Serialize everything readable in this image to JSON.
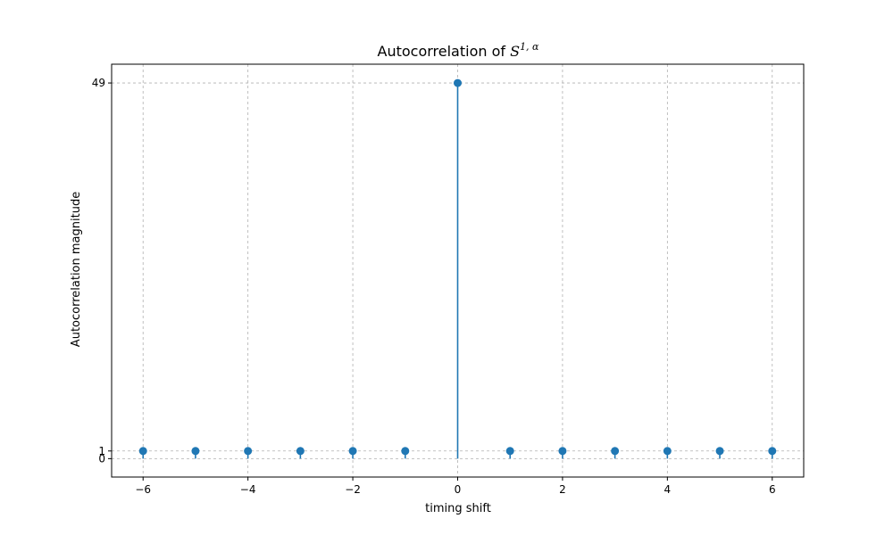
{
  "chart_data": {
    "type": "stem",
    "title": "Autocorrelation of ",
    "title_math_base": "S",
    "title_math_sup": "1, α",
    "xlabel": "timing shift",
    "ylabel": "Autocorrelation  magnitude",
    "x": [
      -6,
      -5,
      -4,
      -3,
      -2,
      -1,
      0,
      1,
      2,
      3,
      4,
      5,
      6
    ],
    "y": [
      1,
      1,
      1,
      1,
      1,
      1,
      49,
      1,
      1,
      1,
      1,
      1,
      1
    ],
    "xlim": [
      -6.6,
      6.6
    ],
    "ylim": [
      -2.4,
      51.45
    ],
    "xticks": [
      -6,
      -4,
      -2,
      0,
      2,
      4,
      6
    ],
    "xtick_labels": [
      "−6",
      "−4",
      "−2",
      "0",
      "2",
      "4",
      "6"
    ],
    "yticks": [
      0,
      1,
      49
    ],
    "ytick_labels": [
      "0",
      "1",
      "49"
    ],
    "grid": true,
    "grid_style": "dashed",
    "color": "#1f77b4"
  }
}
